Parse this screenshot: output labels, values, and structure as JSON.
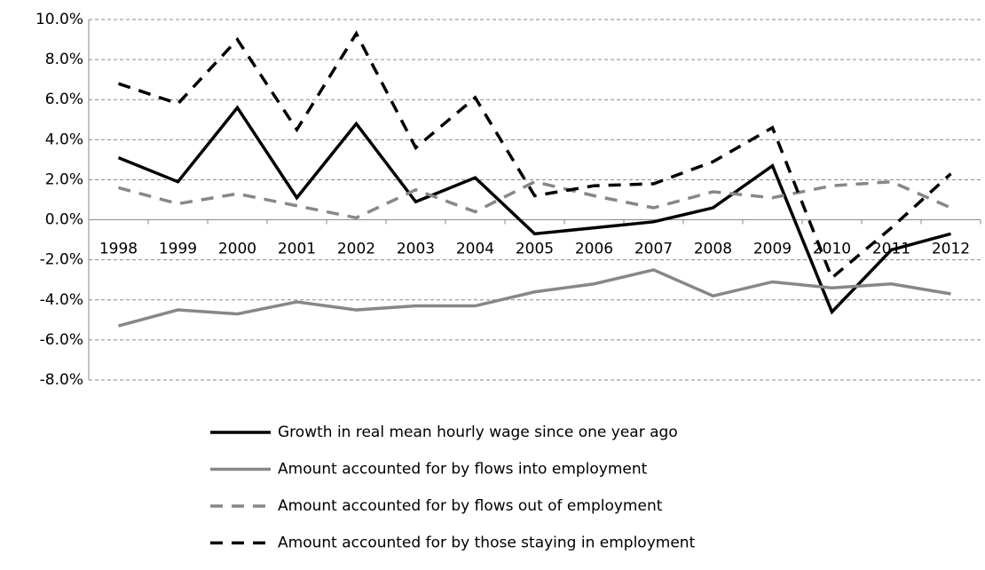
{
  "chart_data": {
    "type": "line",
    "categories": [
      "1998",
      "1999",
      "2000",
      "2001",
      "2002",
      "2003",
      "2004",
      "2005",
      "2006",
      "2007",
      "2008",
      "2009",
      "2010",
      "2011",
      "2012"
    ],
    "series": [
      {
        "name": "Growth in real mean hourly wage since one year ago",
        "color": "#000000",
        "dashed": false,
        "values": [
          3.1,
          1.9,
          5.6,
          1.1,
          4.8,
          0.9,
          2.1,
          -0.7,
          -0.4,
          -0.1,
          0.6,
          2.7,
          -4.6,
          -1.5,
          -0.7
        ]
      },
      {
        "name": "Amount accounted for by flows into employment",
        "color": "#878787",
        "dashed": false,
        "values": [
          -5.3,
          -4.5,
          -4.7,
          -4.1,
          -4.5,
          -4.3,
          -4.3,
          -3.6,
          -3.2,
          -2.5,
          -3.8,
          -3.1,
          -3.4,
          -3.2,
          -3.7
        ]
      },
      {
        "name": "Amount accounted for by flows out of employment",
        "color": "#878787",
        "dashed": true,
        "values": [
          1.6,
          0.8,
          1.3,
          0.7,
          0.1,
          1.5,
          0.4,
          1.9,
          1.2,
          0.6,
          1.4,
          1.1,
          1.7,
          1.9,
          0.6
        ]
      },
      {
        "name": "Amount accounted for by those staying in employment",
        "color": "#000000",
        "dashed": true,
        "values": [
          6.8,
          5.8,
          9.0,
          4.5,
          9.3,
          3.6,
          6.1,
          1.2,
          1.7,
          1.8,
          2.9,
          4.6,
          -2.9,
          -0.4,
          2.3
        ]
      }
    ],
    "ylim": [
      -8,
      10
    ],
    "yticks": [
      {
        "value": -8,
        "label": "-8.0%"
      },
      {
        "value": -6,
        "label": "-6.0%"
      },
      {
        "value": -4,
        "label": "-4.0%"
      },
      {
        "value": -2,
        "label": "-2.0%"
      },
      {
        "value": 0,
        "label": "0.0%"
      },
      {
        "value": 2,
        "label": "2.0%"
      },
      {
        "value": 4,
        "label": "4.0%"
      },
      {
        "value": 6,
        "label": "6.0%"
      },
      {
        "value": 8,
        "label": "8.0%"
      },
      {
        "value": 10,
        "label": "10.0%"
      }
    ],
    "grid": true,
    "legend": "bottom"
  }
}
